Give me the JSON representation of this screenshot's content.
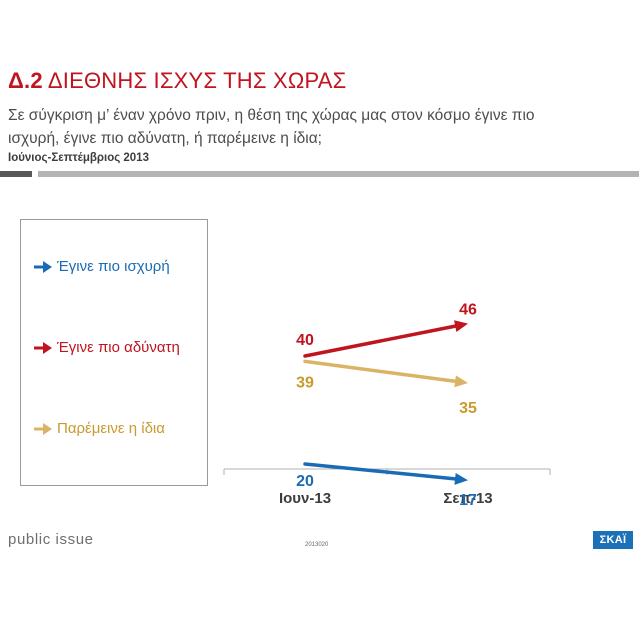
{
  "header": {
    "code": "Δ.2",
    "title": "ΔΙΕΘΝΗΣ ΙΣΧΥΣ ΤΗΣ ΧΩΡΑΣ",
    "subtitle": "Σε σύγκριση μ’ έναν χρόνο πριν, η θέση της χώρας μας στον κόσμο έγινε πιο ισχυρή, έγινε πιο αδύνατη, ή παρέμεινε η ίδια;",
    "period": "Ιούνιος-Σεπτέμβριος 2013"
  },
  "footer": {
    "brand_left": "public issue",
    "code": "2013020",
    "brand_right": "ΣΚΑΪ"
  },
  "chart_data": {
    "type": "line",
    "categories": [
      "Ιουν-13",
      "Σεπ-13"
    ],
    "series": [
      {
        "name": "Έγινε πιο ισχυρή",
        "values": [
          20,
          17
        ],
        "color": "#1a6bb5"
      },
      {
        "name": "Έγινε πιο αδύνατη",
        "values": [
          40,
          46
        ],
        "color": "#c0141f"
      },
      {
        "name": "Παρέμεινε η ίδια",
        "values": [
          39,
          35
        ],
        "color": "#dab465"
      }
    ],
    "legend_position": "left",
    "grid": false
  }
}
